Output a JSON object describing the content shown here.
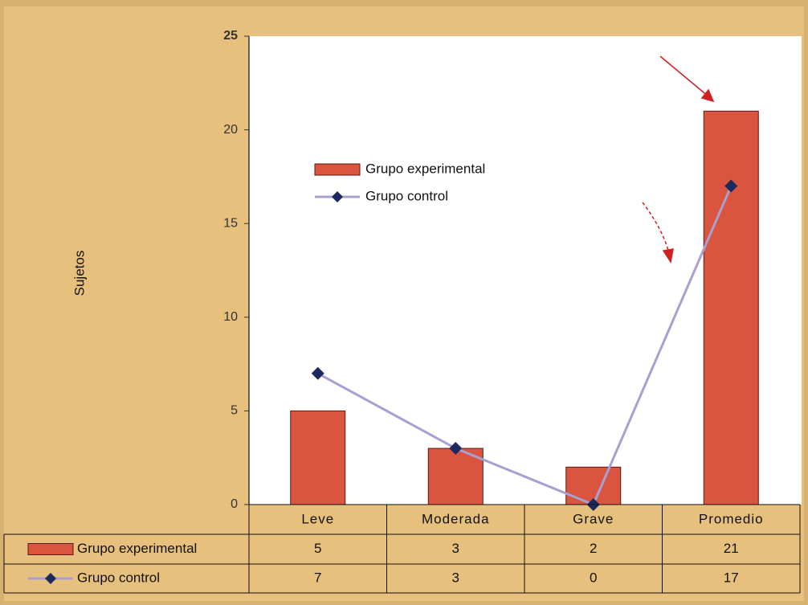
{
  "chart_data": {
    "type": "bar-line",
    "y_label": "Sujetos",
    "categories": [
      "Leve",
      "Moderada",
      "Grave",
      "Promedio"
    ],
    "series": [
      {
        "name": "Grupo experimental",
        "type": "bar",
        "color": "#d9553f",
        "values": [
          5,
          3,
          2,
          21
        ]
      },
      {
        "name": "Grupo control",
        "type": "line",
        "color": "#a99fd0",
        "marker_color": "#1b2a5c",
        "values": [
          7,
          3,
          0,
          17
        ]
      }
    ],
    "ylim": [
      0,
      25
    ],
    "yticks": [
      0,
      5,
      10,
      15,
      20,
      25
    ],
    "grid": false
  }
}
